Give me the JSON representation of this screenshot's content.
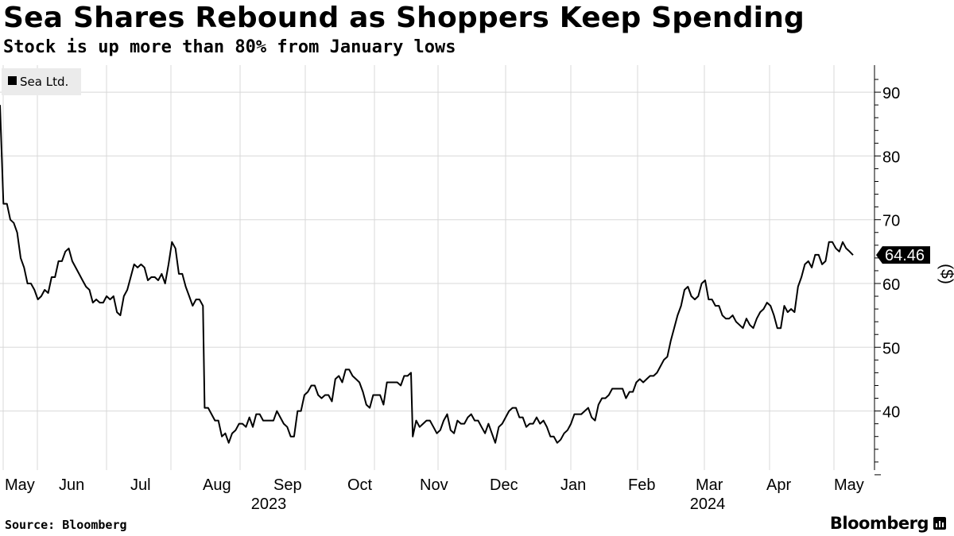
{
  "chart_data": {
    "type": "line",
    "title": "Sea Shares Rebound as Shoppers Keep Spending",
    "subtitle": "Stock is up more than 80% from January lows",
    "legend": "Sea Ltd.",
    "legend_position": "top-left",
    "ylabel": "($)",
    "ylim": [
      30,
      93
    ],
    "yticks": [
      40,
      50,
      60,
      70,
      80,
      90
    ],
    "last_value_label": "64.46",
    "x_axis": {
      "months": [
        "May",
        "Jun",
        "Jul",
        "Aug",
        "Sep",
        "Oct",
        "Nov",
        "Dec",
        "Jan",
        "Feb",
        "Mar",
        "Apr",
        "May"
      ],
      "years": [
        "2023",
        "2024"
      ]
    },
    "series": [
      {
        "name": "Sea Ltd.",
        "points": [
          [
            0,
            88.0
          ],
          [
            2,
            72.5
          ],
          [
            4,
            72.5
          ],
          [
            6,
            70.0
          ],
          [
            8,
            69.5
          ],
          [
            10,
            68.0
          ],
          [
            12,
            64.0
          ],
          [
            14,
            62.5
          ],
          [
            16,
            60.0
          ],
          [
            18,
            60.0
          ],
          [
            20,
            59.0
          ],
          [
            22,
            57.5
          ],
          [
            24,
            58.0
          ],
          [
            26,
            59.0
          ],
          [
            28,
            58.5
          ],
          [
            30,
            61.0
          ],
          [
            32,
            61.0
          ],
          [
            34,
            63.5
          ],
          [
            36,
            63.5
          ],
          [
            38,
            65.0
          ],
          [
            40,
            65.5
          ],
          [
            42,
            63.5
          ],
          [
            44,
            62.5
          ],
          [
            46,
            61.5
          ],
          [
            48,
            60.5
          ],
          [
            50,
            59.5
          ],
          [
            52,
            59.0
          ],
          [
            54,
            57.0
          ],
          [
            56,
            57.5
          ],
          [
            58,
            57.0
          ],
          [
            60,
            57.0
          ],
          [
            62,
            58.0
          ],
          [
            64,
            57.5
          ],
          [
            66,
            58.0
          ],
          [
            68,
            55.5
          ],
          [
            70,
            55.0
          ],
          [
            72,
            58.0
          ],
          [
            74,
            59.0
          ],
          [
            76,
            61.0
          ],
          [
            78,
            63.0
          ],
          [
            80,
            62.5
          ],
          [
            82,
            63.0
          ],
          [
            84,
            62.5
          ],
          [
            86,
            60.5
          ],
          [
            88,
            61.0
          ],
          [
            90,
            61.0
          ],
          [
            92,
            60.5
          ],
          [
            94,
            61.5
          ],
          [
            96,
            60.0
          ],
          [
            98,
            63.0
          ],
          [
            100,
            66.5
          ],
          [
            102,
            65.5
          ],
          [
            104,
            61.5
          ],
          [
            106,
            61.5
          ],
          [
            108,
            59.5
          ],
          [
            110,
            58.0
          ],
          [
            112,
            56.5
          ],
          [
            114,
            57.5
          ],
          [
            116,
            57.5
          ],
          [
            118,
            56.5
          ],
          [
            119,
            40.5
          ],
          [
            121,
            40.5
          ],
          [
            123,
            39.5
          ],
          [
            125,
            38.5
          ],
          [
            127,
            38.5
          ],
          [
            129,
            36.0
          ],
          [
            131,
            36.5
          ],
          [
            133,
            35.0
          ],
          [
            135,
            36.5
          ],
          [
            137,
            37.0
          ],
          [
            139,
            38.0
          ],
          [
            141,
            38.0
          ],
          [
            143,
            37.5
          ],
          [
            145,
            39.0
          ],
          [
            147,
            37.5
          ],
          [
            149,
            39.5
          ],
          [
            151,
            39.5
          ],
          [
            153,
            38.5
          ],
          [
            155,
            38.5
          ],
          [
            157,
            38.5
          ],
          [
            159,
            38.5
          ],
          [
            161,
            40.0
          ],
          [
            163,
            39.0
          ],
          [
            165,
            38.0
          ],
          [
            167,
            37.5
          ],
          [
            169,
            36.0
          ],
          [
            171,
            36.0
          ],
          [
            173,
            40.0
          ],
          [
            175,
            40.0
          ],
          [
            177,
            42.5
          ],
          [
            179,
            43.0
          ],
          [
            181,
            44.0
          ],
          [
            183,
            44.0
          ],
          [
            185,
            42.5
          ],
          [
            187,
            42.0
          ],
          [
            189,
            42.5
          ],
          [
            191,
            42.5
          ],
          [
            193,
            41.5
          ],
          [
            195,
            45.0
          ],
          [
            197,
            45.5
          ],
          [
            199,
            44.5
          ],
          [
            201,
            46.5
          ],
          [
            203,
            46.5
          ],
          [
            205,
            45.5
          ],
          [
            207,
            45.0
          ],
          [
            209,
            44.5
          ],
          [
            211,
            43.0
          ],
          [
            213,
            41.0
          ],
          [
            215,
            40.5
          ],
          [
            217,
            42.5
          ],
          [
            219,
            42.5
          ],
          [
            221,
            42.5
          ],
          [
            223,
            41.0
          ],
          [
            225,
            44.5
          ],
          [
            227,
            44.5
          ],
          [
            229,
            44.5
          ],
          [
            231,
            44.5
          ],
          [
            233,
            44.0
          ],
          [
            235,
            45.5
          ],
          [
            237,
            45.5
          ],
          [
            239,
            46.0
          ],
          [
            240,
            36.0
          ],
          [
            242,
            38.5
          ],
          [
            244,
            37.5
          ],
          [
            246,
            38.0
          ],
          [
            248,
            38.5
          ],
          [
            250,
            38.5
          ],
          [
            252,
            37.5
          ],
          [
            254,
            36.5
          ],
          [
            256,
            37.0
          ],
          [
            258,
            38.5
          ],
          [
            260,
            39.5
          ],
          [
            262,
            37.0
          ],
          [
            264,
            36.5
          ],
          [
            266,
            38.5
          ],
          [
            268,
            38.0
          ],
          [
            270,
            38.0
          ],
          [
            272,
            39.0
          ],
          [
            274,
            39.5
          ],
          [
            276,
            38.5
          ],
          [
            278,
            38.5
          ],
          [
            280,
            37.5
          ],
          [
            282,
            36.5
          ],
          [
            284,
            38.0
          ],
          [
            286,
            36.5
          ],
          [
            288,
            35.0
          ],
          [
            290,
            37.5
          ],
          [
            292,
            38.0
          ],
          [
            294,
            39.0
          ],
          [
            296,
            40.0
          ],
          [
            298,
            40.5
          ],
          [
            300,
            40.5
          ],
          [
            302,
            39.0
          ],
          [
            304,
            39.0
          ],
          [
            306,
            37.5
          ],
          [
            308,
            38.0
          ],
          [
            310,
            38.0
          ],
          [
            312,
            39.0
          ],
          [
            314,
            38.0
          ],
          [
            316,
            38.5
          ],
          [
            318,
            37.5
          ],
          [
            320,
            36.0
          ],
          [
            322,
            36.0
          ],
          [
            324,
            35.0
          ],
          [
            326,
            35.5
          ],
          [
            328,
            36.5
          ],
          [
            330,
            37.0
          ],
          [
            332,
            38.0
          ],
          [
            334,
            39.5
          ],
          [
            336,
            39.5
          ],
          [
            338,
            39.5
          ],
          [
            340,
            40.0
          ],
          [
            342,
            40.5
          ],
          [
            344,
            39.0
          ],
          [
            346,
            38.5
          ],
          [
            348,
            41.0
          ],
          [
            350,
            42.0
          ],
          [
            352,
            42.0
          ],
          [
            354,
            42.5
          ],
          [
            356,
            43.5
          ],
          [
            358,
            43.5
          ],
          [
            360,
            43.5
          ],
          [
            362,
            43.5
          ],
          [
            364,
            42.0
          ],
          [
            366,
            43.0
          ],
          [
            368,
            43.0
          ],
          [
            370,
            44.5
          ],
          [
            372,
            45.0
          ],
          [
            374,
            44.5
          ],
          [
            376,
            45.0
          ],
          [
            378,
            45.5
          ],
          [
            380,
            45.5
          ],
          [
            382,
            46.0
          ],
          [
            384,
            47.0
          ],
          [
            386,
            48.0
          ],
          [
            388,
            48.5
          ],
          [
            390,
            51.0
          ],
          [
            392,
            53.0
          ],
          [
            394,
            55.0
          ],
          [
            396,
            56.5
          ],
          [
            398,
            59.0
          ],
          [
            400,
            59.5
          ],
          [
            402,
            58.0
          ],
          [
            404,
            57.5
          ],
          [
            406,
            58.0
          ],
          [
            408,
            60.0
          ],
          [
            410,
            60.5
          ],
          [
            412,
            57.5
          ],
          [
            414,
            57.5
          ],
          [
            416,
            56.5
          ],
          [
            418,
            56.5
          ],
          [
            420,
            55.0
          ],
          [
            422,
            54.5
          ],
          [
            424,
            54.5
          ],
          [
            426,
            55.0
          ],
          [
            428,
            54.0
          ],
          [
            430,
            53.5
          ],
          [
            432,
            53.0
          ],
          [
            434,
            54.5
          ],
          [
            436,
            53.5
          ],
          [
            438,
            53.0
          ],
          [
            440,
            54.5
          ],
          [
            442,
            55.5
          ],
          [
            444,
            56.0
          ],
          [
            446,
            57.0
          ],
          [
            448,
            56.5
          ],
          [
            450,
            55.0
          ],
          [
            452,
            53.0
          ],
          [
            454,
            53.0
          ],
          [
            456,
            56.5
          ],
          [
            458,
            55.5
          ],
          [
            460,
            56.0
          ],
          [
            462,
            55.5
          ],
          [
            464,
            59.5
          ],
          [
            466,
            61.0
          ],
          [
            468,
            63.0
          ],
          [
            470,
            63.5
          ],
          [
            472,
            62.5
          ],
          [
            474,
            64.5
          ],
          [
            476,
            64.5
          ],
          [
            478,
            63.0
          ],
          [
            480,
            63.5
          ],
          [
            482,
            66.5
          ],
          [
            484,
            66.5
          ],
          [
            486,
            65.5
          ],
          [
            488,
            65.0
          ],
          [
            490,
            66.5
          ],
          [
            492,
            65.5
          ],
          [
            494,
            65.0
          ],
          [
            496,
            64.46
          ]
        ]
      }
    ]
  },
  "source": "Source: Bloomberg",
  "brand": "Bloomberg",
  "colors": {
    "line": "#000000",
    "grid": "#d8d8d8",
    "legend_bg": "#ebebeb",
    "badge_bg": "#000000",
    "badge_text": "#ffffff"
  }
}
